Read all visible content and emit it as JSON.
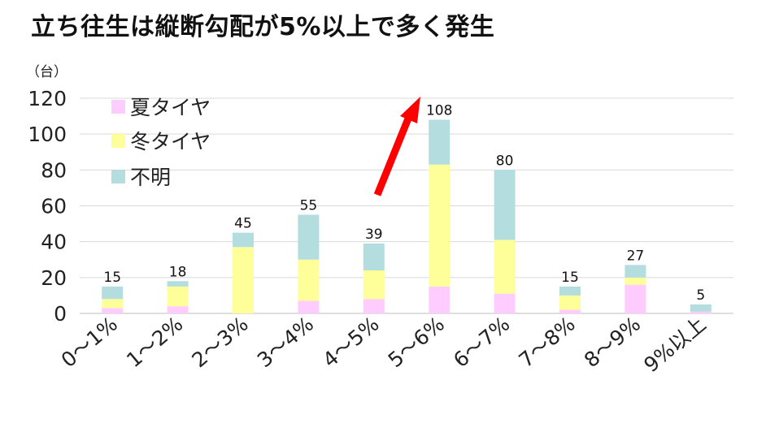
{
  "title": "立ち往生は縦断勾配が5%以上で多く発生",
  "colors": {
    "summer": "#ffccff",
    "winter": "#ffff99",
    "unknown": "#b4dde0",
    "arrow": "#ff0000",
    "grid": "#d9d9d9"
  },
  "chart_data": {
    "type": "bar",
    "stacked": true,
    "ylabel": "（台）",
    "ylim": [
      0,
      120
    ],
    "yticks": [
      0,
      20,
      40,
      60,
      80,
      100,
      120
    ],
    "grid": true,
    "legend_position": "top-left",
    "categories": [
      "0～1%",
      "1～2%",
      "2～3%",
      "3～4%",
      "4～5%",
      "5～6%",
      "6～7%",
      "7～8%",
      "8～9%",
      "9%以上"
    ],
    "series": [
      {
        "name": "夏タイヤ",
        "values": [
          3,
          4,
          0,
          7,
          8,
          15,
          11,
          2,
          16,
          1
        ]
      },
      {
        "name": "冬タイヤ",
        "values": [
          5,
          11,
          37,
          23,
          16,
          68,
          30,
          8,
          4,
          0
        ]
      },
      {
        "name": "不明",
        "values": [
          7,
          3,
          8,
          25,
          15,
          25,
          39,
          5,
          7,
          4
        ]
      }
    ],
    "totals": [
      15,
      18,
      45,
      55,
      39,
      108,
      80,
      15,
      27,
      5
    ],
    "annotations": [
      {
        "type": "arrow",
        "color": "red",
        "points_to": "5～6%"
      }
    ]
  }
}
